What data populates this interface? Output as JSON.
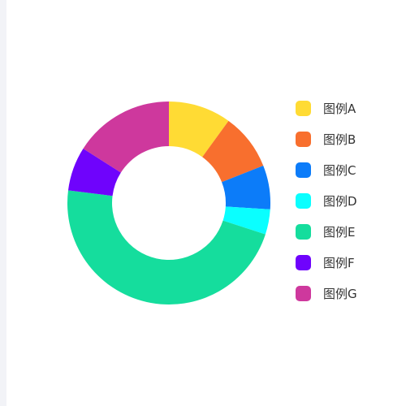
{
  "chart_data": {
    "type": "pie",
    "variant": "donut",
    "title": "",
    "legend_position": "right",
    "slices": [
      {
        "label": "图例A",
        "value": 10,
        "color": "#FFDB34"
      },
      {
        "label": "图例B",
        "value": 9,
        "color": "#F86F2E"
      },
      {
        "label": "图例C",
        "value": 7,
        "color": "#0C7CF9"
      },
      {
        "label": "图例D",
        "value": 4,
        "color": "#0AFFFF"
      },
      {
        "label": "图例E",
        "value": 47,
        "color": "#15DD9D"
      },
      {
        "label": "图例F",
        "value": 7,
        "color": "#6F03FC"
      },
      {
        "label": "图例G",
        "value": 16,
        "color": "#CE389D"
      }
    ]
  }
}
